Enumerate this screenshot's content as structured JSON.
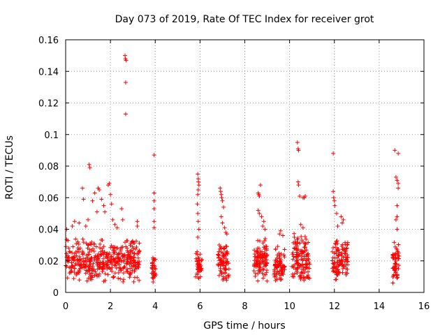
{
  "chart_data": {
    "type": "scatter",
    "title": "Day 073 of 2019, Rate Of TEC Index for receiver grot",
    "xlabel": "GPS time / hours",
    "ylabel": "ROTI / TECUs",
    "xlim": [
      0,
      16
    ],
    "ylim": [
      0,
      0.16
    ],
    "xticks": [
      0,
      2,
      4,
      6,
      8,
      10,
      12,
      14,
      16
    ],
    "yticks": [
      0,
      0.02,
      0.04,
      0.06,
      0.08,
      0.1,
      0.12,
      0.14,
      0.16
    ],
    "xtick_labels": [
      "0",
      "2",
      "4",
      "6",
      "8",
      "10",
      "12",
      "14",
      "16"
    ],
    "ytick_labels": [
      "0",
      "0.02",
      "0.04",
      "0.06",
      "0.08",
      "0.1",
      "0.12",
      "0.14",
      "0.16"
    ],
    "grid": true,
    "marker": "+",
    "marker_color": "#ff0000",
    "clusters": [
      {
        "x_range": [
          0.0,
          3.3
        ],
        "y_range": [
          0.006,
          0.035
        ],
        "n": 420
      },
      {
        "x_range": [
          3.85,
          4.05
        ],
        "y_range": [
          0.004,
          0.025
        ],
        "n": 35
      },
      {
        "x_range": [
          5.8,
          6.1
        ],
        "y_range": [
          0.008,
          0.028
        ],
        "n": 45
      },
      {
        "x_range": [
          6.8,
          7.3
        ],
        "y_range": [
          0.006,
          0.032
        ],
        "n": 80
      },
      {
        "x_range": [
          8.4,
          9.0
        ],
        "y_range": [
          0.006,
          0.035
        ],
        "n": 110
      },
      {
        "x_range": [
          9.3,
          9.8
        ],
        "y_range": [
          0.006,
          0.03
        ],
        "n": 85
      },
      {
        "x_range": [
          10.1,
          10.9
        ],
        "y_range": [
          0.004,
          0.038
        ],
        "n": 130
      },
      {
        "x_range": [
          11.9,
          12.6
        ],
        "y_range": [
          0.006,
          0.035
        ],
        "n": 110
      },
      {
        "x_range": [
          14.6,
          14.9
        ],
        "y_range": [
          0.005,
          0.035
        ],
        "n": 55
      }
    ],
    "points": [
      [
        0.05,
        0.04
      ],
      [
        0.3,
        0.042
      ],
      [
        0.4,
        0.045
      ],
      [
        0.6,
        0.044
      ],
      [
        0.75,
        0.066
      ],
      [
        0.8,
        0.059
      ],
      [
        0.9,
        0.042
      ],
      [
        1.0,
        0.046
      ],
      [
        1.05,
        0.081
      ],
      [
        1.08,
        0.079
      ],
      [
        1.2,
        0.058
      ],
      [
        1.3,
        0.063
      ],
      [
        1.4,
        0.051
      ],
      [
        1.45,
        0.066
      ],
      [
        1.5,
        0.065
      ],
      [
        1.6,
        0.059
      ],
      [
        1.7,
        0.055
      ],
      [
        1.75,
        0.051
      ],
      [
        1.9,
        0.068
      ],
      [
        1.95,
        0.069
      ],
      [
        2.0,
        0.062
      ],
      [
        2.05,
        0.056
      ],
      [
        2.1,
        0.046
      ],
      [
        2.2,
        0.043
      ],
      [
        2.3,
        0.041
      ],
      [
        2.5,
        0.053
      ],
      [
        2.55,
        0.046
      ],
      [
        2.65,
        0.15
      ],
      [
        2.67,
        0.148
      ],
      [
        2.7,
        0.147
      ],
      [
        2.68,
        0.133
      ],
      [
        2.68,
        0.113
      ],
      [
        3.2,
        0.045
      ],
      [
        3.2,
        0.042
      ],
      [
        3.95,
        0.087
      ],
      [
        3.95,
        0.063
      ],
      [
        3.95,
        0.058
      ],
      [
        3.95,
        0.053
      ],
      [
        3.95,
        0.045
      ],
      [
        3.95,
        0.041
      ],
      [
        5.9,
        0.075
      ],
      [
        5.92,
        0.072
      ],
      [
        5.93,
        0.07
      ],
      [
        5.95,
        0.068
      ],
      [
        5.92,
        0.065
      ],
      [
        5.9,
        0.062
      ],
      [
        5.88,
        0.056
      ],
      [
        5.9,
        0.05
      ],
      [
        5.92,
        0.045
      ],
      [
        5.95,
        0.04
      ],
      [
        5.9,
        0.035
      ],
      [
        6.9,
        0.066
      ],
      [
        6.92,
        0.064
      ],
      [
        6.95,
        0.062
      ],
      [
        6.97,
        0.06
      ],
      [
        7.0,
        0.058
      ],
      [
        7.05,
        0.054
      ],
      [
        6.95,
        0.048
      ],
      [
        7.0,
        0.044
      ],
      [
        7.1,
        0.041
      ],
      [
        7.15,
        0.038
      ],
      [
        7.2,
        0.037
      ],
      [
        8.6,
        0.063
      ],
      [
        8.62,
        0.062
      ],
      [
        8.65,
        0.061
      ],
      [
        8.7,
        0.068
      ],
      [
        8.6,
        0.052
      ],
      [
        8.65,
        0.05
      ],
      [
        8.75,
        0.048
      ],
      [
        8.85,
        0.045
      ],
      [
        8.8,
        0.042
      ],
      [
        8.9,
        0.04
      ],
      [
        9.55,
        0.037
      ],
      [
        9.6,
        0.039
      ],
      [
        9.7,
        0.036
      ],
      [
        10.35,
        0.095
      ],
      [
        10.38,
        0.091
      ],
      [
        10.4,
        0.09
      ],
      [
        10.38,
        0.07
      ],
      [
        10.4,
        0.068
      ],
      [
        10.45,
        0.061
      ],
      [
        10.6,
        0.06
      ],
      [
        10.65,
        0.06
      ],
      [
        10.7,
        0.061
      ],
      [
        10.5,
        0.043
      ],
      [
        10.6,
        0.041
      ],
      [
        11.95,
        0.088
      ],
      [
        11.95,
        0.064
      ],
      [
        11.97,
        0.06
      ],
      [
        12.0,
        0.058
      ],
      [
        12.02,
        0.055
      ],
      [
        12.1,
        0.05
      ],
      [
        12.3,
        0.048
      ],
      [
        12.4,
        0.046
      ],
      [
        12.35,
        0.044
      ],
      [
        12.15,
        0.042
      ],
      [
        14.7,
        0.09
      ],
      [
        14.85,
        0.088
      ],
      [
        14.75,
        0.073
      ],
      [
        14.8,
        0.071
      ],
      [
        14.85,
        0.069
      ],
      [
        14.85,
        0.066
      ],
      [
        14.8,
        0.055
      ],
      [
        14.8,
        0.048
      ],
      [
        14.75,
        0.046
      ],
      [
        14.8,
        0.04
      ]
    ]
  }
}
